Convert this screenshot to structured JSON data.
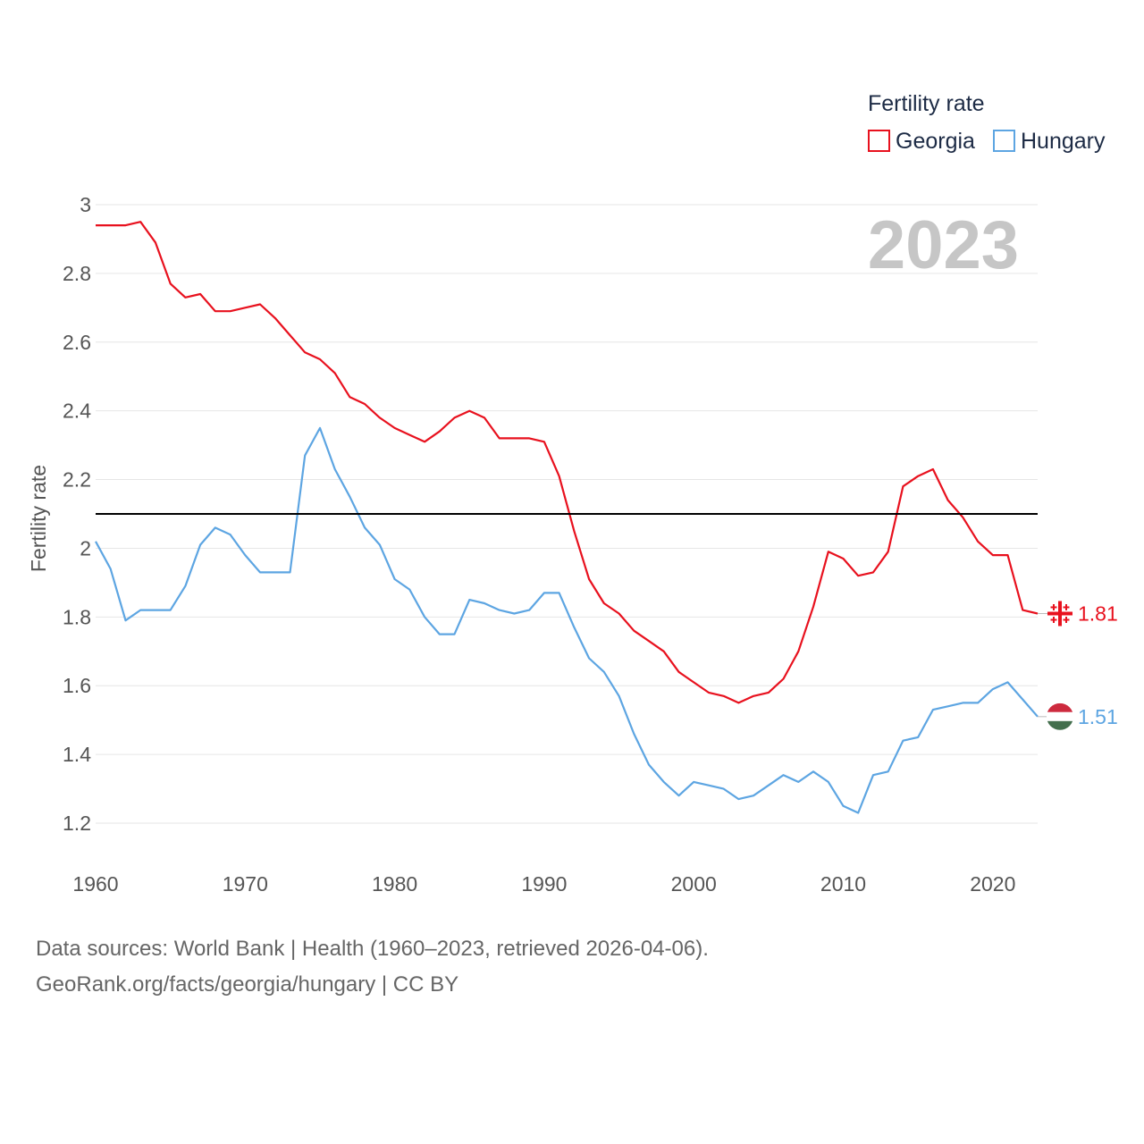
{
  "chart_data": {
    "type": "line",
    "legend_title": "Fertility rate",
    "ylabel": "Fertility rate",
    "current_year": "2023",
    "xlim": [
      1960,
      2023
    ],
    "ylim": [
      1.0,
      3.0
    ],
    "x_ticks": [
      1960,
      1970,
      1980,
      1990,
      2000,
      2010,
      2020
    ],
    "y_ticks": [
      1.2,
      1.4,
      1.6,
      1.8,
      2,
      2.2,
      2.4,
      2.6,
      2.8,
      3
    ],
    "reference_line": {
      "value": 2.1,
      "color": "#000000"
    },
    "x": [
      1960,
      1961,
      1962,
      1963,
      1964,
      1965,
      1966,
      1967,
      1968,
      1969,
      1970,
      1971,
      1972,
      1973,
      1974,
      1975,
      1976,
      1977,
      1978,
      1979,
      1980,
      1981,
      1982,
      1983,
      1984,
      1985,
      1986,
      1987,
      1988,
      1989,
      1990,
      1991,
      1992,
      1993,
      1994,
      1995,
      1996,
      1997,
      1998,
      1999,
      2000,
      2001,
      2002,
      2003,
      2004,
      2005,
      2006,
      2007,
      2008,
      2009,
      2010,
      2011,
      2012,
      2013,
      2014,
      2015,
      2016,
      2017,
      2018,
      2019,
      2020,
      2021,
      2022,
      2023
    ],
    "series": [
      {
        "name": "Georgia",
        "color": "#e8111e",
        "end_label": "1.81",
        "flag_icon": "georgia-flag-icon",
        "values": [
          2.94,
          2.94,
          2.94,
          2.95,
          2.89,
          2.77,
          2.73,
          2.74,
          2.69,
          2.69,
          2.7,
          2.71,
          2.67,
          2.62,
          2.57,
          2.55,
          2.51,
          2.44,
          2.42,
          2.38,
          2.35,
          2.33,
          2.31,
          2.34,
          2.38,
          2.4,
          2.38,
          2.32,
          2.32,
          2.32,
          2.31,
          2.21,
          2.05,
          1.91,
          1.84,
          1.81,
          1.76,
          1.73,
          1.7,
          1.64,
          1.61,
          1.58,
          1.57,
          1.55,
          1.57,
          1.58,
          1.62,
          1.7,
          1.83,
          1.99,
          1.97,
          1.92,
          1.93,
          1.99,
          2.18,
          2.21,
          2.23,
          2.14,
          2.09,
          2.02,
          1.98,
          1.98,
          1.82,
          1.81
        ]
      },
      {
        "name": "Hungary",
        "color": "#5da5e2",
        "end_label": "1.51",
        "flag_icon": "hungary-flag-icon",
        "values": [
          2.02,
          1.94,
          1.79,
          1.82,
          1.82,
          1.82,
          1.89,
          2.01,
          2.06,
          2.04,
          1.98,
          1.93,
          1.93,
          1.93,
          2.27,
          2.35,
          2.23,
          2.15,
          2.06,
          2.01,
          1.91,
          1.88,
          1.8,
          1.75,
          1.75,
          1.85,
          1.84,
          1.82,
          1.81,
          1.82,
          1.87,
          1.87,
          1.77,
          1.68,
          1.64,
          1.57,
          1.46,
          1.37,
          1.32,
          1.28,
          1.32,
          1.31,
          1.3,
          1.27,
          1.28,
          1.31,
          1.34,
          1.32,
          1.35,
          1.32,
          1.25,
          1.23,
          1.34,
          1.35,
          1.44,
          1.45,
          1.53,
          1.54,
          1.55,
          1.55,
          1.59,
          1.61,
          1.56,
          1.51
        ]
      }
    ]
  },
  "footer": {
    "sources": "Data sources: World Bank | Health (1960–2023, retrieved 2026-04-06).",
    "link": "GeoRank.org/facts/georgia/hungary | CC BY"
  }
}
